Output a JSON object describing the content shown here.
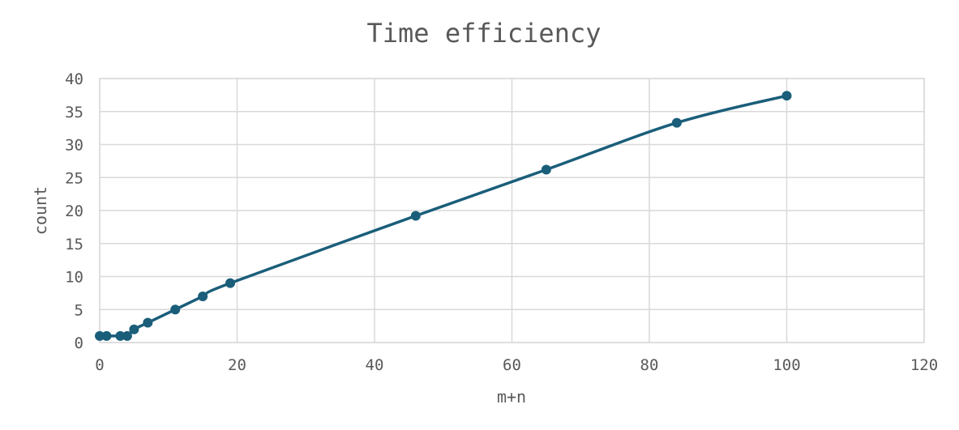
{
  "chart_data": {
    "type": "scatter",
    "title": "Time efficiency",
    "xlabel": "m+n",
    "ylabel": "count",
    "xlim": [
      0,
      120
    ],
    "ylim": [
      0,
      40
    ],
    "x_ticks": [
      0,
      20,
      40,
      60,
      80,
      100,
      120
    ],
    "y_ticks": [
      0,
      5,
      10,
      15,
      20,
      25,
      30,
      35,
      40
    ],
    "grid": true,
    "legend": "none",
    "trendline": "smooth",
    "series": [
      {
        "color": "#1a5e7a",
        "x": [
          0,
          1,
          3,
          4,
          5,
          7,
          11,
          15,
          19,
          46,
          65,
          84,
          100
        ],
        "y": [
          1,
          1,
          1,
          1,
          2,
          3,
          5,
          7,
          9,
          19.2,
          26.2,
          33.3,
          37.4
        ]
      }
    ]
  }
}
